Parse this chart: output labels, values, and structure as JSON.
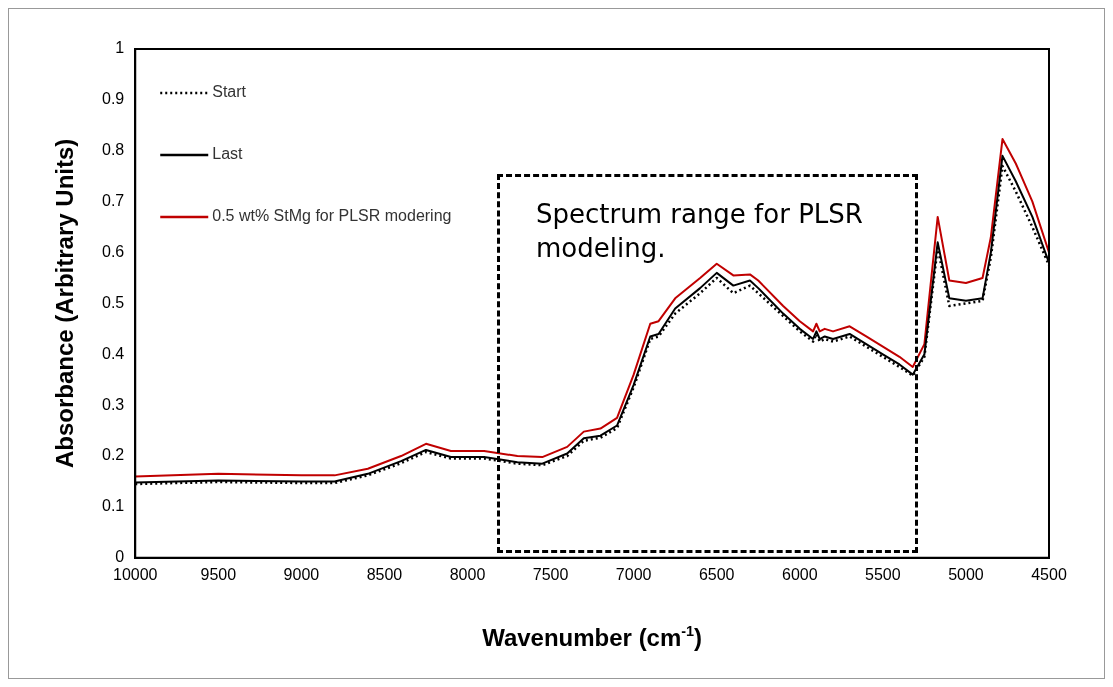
{
  "chart_data": {
    "type": "line",
    "xlabel": "Wavenumber (cm$^{-1}$)",
    "ylabel": "Absorbance (Arbitrary Units)",
    "x": [
      10000,
      9500,
      9000,
      8800,
      8600,
      8400,
      8250,
      8100,
      7900,
      7700,
      7550,
      7400,
      7300,
      7200,
      7100,
      7000,
      6900,
      6850,
      6750,
      6600,
      6500,
      6400,
      6300,
      6250,
      6100,
      6000,
      5920,
      5900,
      5880,
      5850,
      5800,
      5700,
      5600,
      5500,
      5400,
      5320,
      5250,
      5170,
      5100,
      5000,
      4900,
      4850,
      4780,
      4700,
      4600,
      4500
    ],
    "series": [
      {
        "name": "Start",
        "color": "#000000",
        "line_style": "dotted",
        "values": [
          0.145,
          0.149,
          0.147,
          0.147,
          0.162,
          0.186,
          0.208,
          0.195,
          0.195,
          0.185,
          0.182,
          0.2,
          0.23,
          0.236,
          0.255,
          0.335,
          0.43,
          0.435,
          0.48,
          0.52,
          0.55,
          0.52,
          0.535,
          0.52,
          0.475,
          0.445,
          0.425,
          0.44,
          0.425,
          0.43,
          0.425,
          0.435,
          0.415,
          0.395,
          0.375,
          0.358,
          0.395,
          0.61,
          0.495,
          0.5,
          0.505,
          0.59,
          0.77,
          0.72,
          0.65,
          0.575
        ]
      },
      {
        "name": "Last",
        "color": "#000000",
        "line_style": "solid",
        "values": [
          0.148,
          0.152,
          0.15,
          0.15,
          0.165,
          0.19,
          0.212,
          0.198,
          0.198,
          0.188,
          0.185,
          0.205,
          0.235,
          0.24,
          0.26,
          0.34,
          0.435,
          0.44,
          0.49,
          0.53,
          0.56,
          0.535,
          0.545,
          0.53,
          0.48,
          0.45,
          0.43,
          0.445,
          0.43,
          0.435,
          0.43,
          0.44,
          0.42,
          0.4,
          0.38,
          0.36,
          0.4,
          0.62,
          0.51,
          0.505,
          0.51,
          0.6,
          0.79,
          0.74,
          0.67,
          0.58
        ]
      },
      {
        "name": "0.5 wt% StMg for PLSR modering",
        "color": "#c00000",
        "line_style": "solid",
        "values": [
          0.16,
          0.165,
          0.162,
          0.162,
          0.175,
          0.2,
          0.224,
          0.21,
          0.21,
          0.2,
          0.198,
          0.218,
          0.248,
          0.254,
          0.275,
          0.36,
          0.46,
          0.465,
          0.51,
          0.55,
          0.578,
          0.555,
          0.557,
          0.545,
          0.495,
          0.465,
          0.445,
          0.46,
          0.445,
          0.45,
          0.445,
          0.455,
          0.435,
          0.415,
          0.395,
          0.375,
          0.42,
          0.67,
          0.545,
          0.54,
          0.55,
          0.63,
          0.823,
          0.775,
          0.7,
          0.6
        ]
      }
    ],
    "xlim": [
      10000,
      4500
    ],
    "xticks": [
      10000,
      9500,
      9000,
      8500,
      8000,
      7500,
      7000,
      6500,
      6000,
      5500,
      5000,
      4500
    ],
    "ylim": [
      0,
      1
    ],
    "yticks": [
      0,
      0.1,
      0.2,
      0.3,
      0.4,
      0.5,
      0.6,
      0.7,
      0.8,
      0.9,
      1
    ],
    "grid": false,
    "legend": "top left",
    "marker": "none",
    "annotations": [
      "Spectrum range for PLSR modeling."
    ]
  }
}
